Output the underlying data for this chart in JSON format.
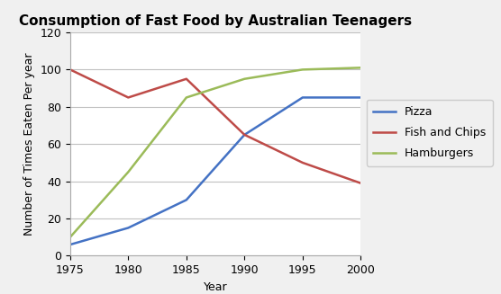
{
  "title": "Consumption of Fast Food by Australian Teenagers",
  "xlabel": "Year",
  "ylabel": "Number of Times Eaten Per year",
  "years": [
    1975,
    1980,
    1985,
    1990,
    1995,
    2000
  ],
  "pizza": [
    6,
    15,
    30,
    65,
    85,
    85
  ],
  "fish_and_chips": [
    100,
    85,
    95,
    65,
    50,
    39
  ],
  "hamburgers": [
    10,
    45,
    85,
    95,
    100,
    101
  ],
  "pizza_color": "#4472C4",
  "fish_color": "#BE4B48",
  "hamburgers_color": "#9BBB59",
  "ylim": [
    0,
    120
  ],
  "yticks": [
    0,
    20,
    40,
    60,
    80,
    100,
    120
  ],
  "xticks": [
    1975,
    1980,
    1985,
    1990,
    1995,
    2000
  ],
  "legend_labels": [
    "Pizza",
    "Fish and Chips",
    "Hamburgers"
  ],
  "line_width": 1.8,
  "background_color": "#F0F0F0",
  "plot_bg_color": "#FFFFFF",
  "grid_color": "#C0C0C0",
  "title_fontsize": 11,
  "axis_label_fontsize": 9,
  "tick_fontsize": 9,
  "legend_fontsize": 9
}
